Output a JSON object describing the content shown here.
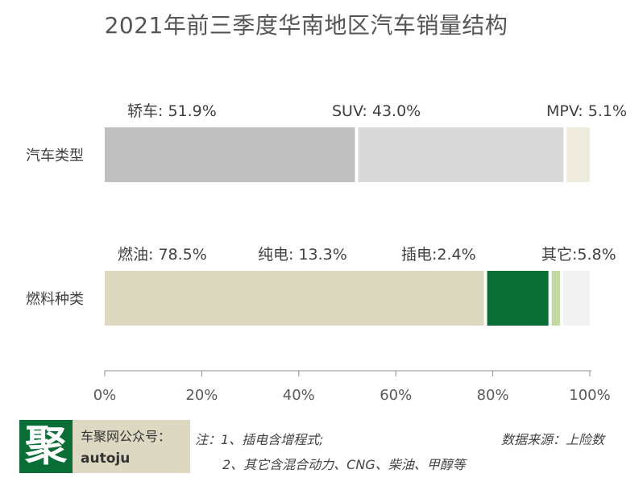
{
  "title": "2021年前三季度华南地区汽车销量结构",
  "chart_data": {
    "type": "bar",
    "orientation": "horizontal",
    "stacked": true,
    "title": "2021年前三季度华南地区汽车销量结构",
    "categories": [
      "汽车类型",
      "燃料种类"
    ],
    "x_ticks": [
      "0%",
      "20%",
      "40%",
      "60%",
      "80%",
      "100%"
    ],
    "xlim": [
      0,
      100
    ],
    "rows": [
      {
        "category": "汽车类型",
        "segments": [
          {
            "name": "轿车",
            "value": 51.9,
            "label": "轿车: 51.9%",
            "color": "#bfbfbf"
          },
          {
            "name": "SUV",
            "value": 43.0,
            "label": "SUV: 43.0%",
            "color": "#d9d9d9"
          },
          {
            "name": "MPV",
            "value": 5.1,
            "label": "MPV: 5.1%",
            "color": "#eeebdd"
          }
        ]
      },
      {
        "category": "燃料种类",
        "segments": [
          {
            "name": "燃油",
            "value": 78.5,
            "label": "燃油: 78.5%",
            "color": "#ddd8c0"
          },
          {
            "name": "纯电",
            "value": 13.3,
            "label": "纯电: 13.3%",
            "color": "#0a6e36"
          },
          {
            "name": "插电",
            "value": 2.4,
            "label": "插电:2.4%",
            "color": "#c3d9a0"
          },
          {
            "name": "其它",
            "value": 5.8,
            "label": "其它:5.8%",
            "color": "#f2f2f2"
          }
        ]
      }
    ]
  },
  "footer": {
    "logo_char": "聚",
    "account_label": "车聚网公众号：",
    "account_id": "autoju",
    "note_line1": "注：1、插电含增程式;",
    "note_line2": "2、其它含混合动力、CNG、柴油、甲醇等",
    "source": "数据来源：上险数"
  }
}
